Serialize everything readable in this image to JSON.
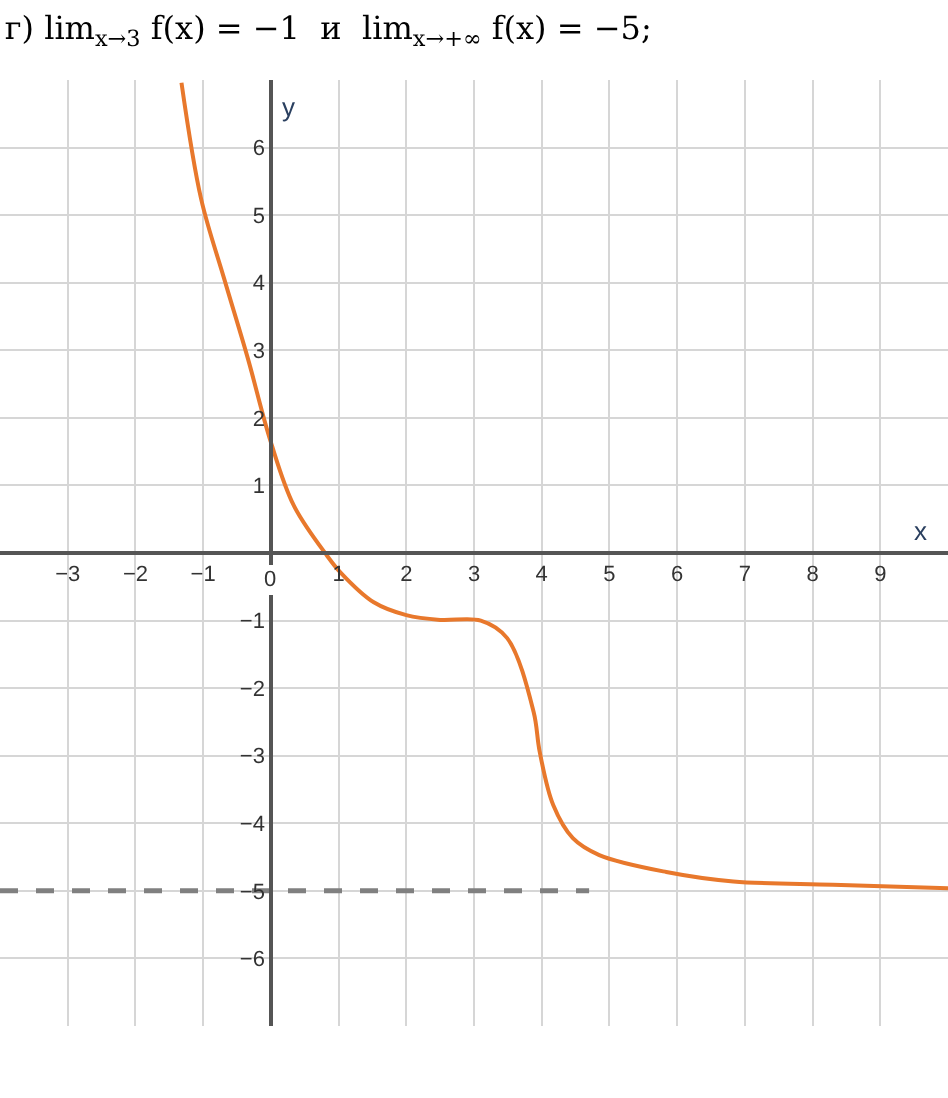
{
  "chart_data": {
    "type": "line",
    "title": "г) lim$_{x→3}$ f(x) = −1  и  lim$_{x→+∞}$ f(x) = −5;",
    "xlabel": "x",
    "ylabel": "y",
    "xlim": [
      -4,
      10
    ],
    "ylim": [
      -7,
      7
    ],
    "xticks": [
      {
        "value": -3,
        "label": "−3"
      },
      {
        "value": -2,
        "label": "−2"
      },
      {
        "value": -1,
        "label": "−1"
      },
      0,
      1,
      2,
      3,
      4,
      5,
      6,
      7,
      8,
      9
    ],
    "yticks": [
      {
        "value": -6,
        "label": "−6"
      },
      {
        "value": -5,
        "label": "−5"
      },
      {
        "value": -4,
        "label": "−4"
      },
      {
        "value": -3,
        "label": "−3"
      },
      {
        "value": -2,
        "label": "−2"
      },
      {
        "value": -1,
        "label": "−1"
      },
      1,
      2,
      3,
      4,
      5,
      6
    ],
    "grid": true,
    "series": [
      {
        "color": "#e8782c",
        "line_style": "solid",
        "x": [
          -1.32,
          -1.03,
          -0.69,
          -0.34,
          0,
          0.34,
          0.83,
          1.03,
          1.52,
          2.0,
          2.5,
          3.1,
          3.49,
          3.88,
          3.97,
          4.17,
          4.46,
          4.85,
          5.84,
          6.83,
          8.3,
          10.0
        ],
        "values": [
          6.96,
          5.24,
          4.06,
          2.88,
          1.64,
          0.7,
          -0.04,
          -0.29,
          -0.73,
          -0.92,
          -0.99,
          -1.0,
          -1.26,
          -2.35,
          -2.94,
          -3.73,
          -4.22,
          -4.47,
          -4.72,
          -4.86,
          -4.91,
          -4.96
        ]
      },
      {
        "color": "#808080",
        "line_style": "dashed",
        "x": [
          -4,
          4.7
        ],
        "values": [
          -5,
          -5
        ]
      }
    ]
  }
}
